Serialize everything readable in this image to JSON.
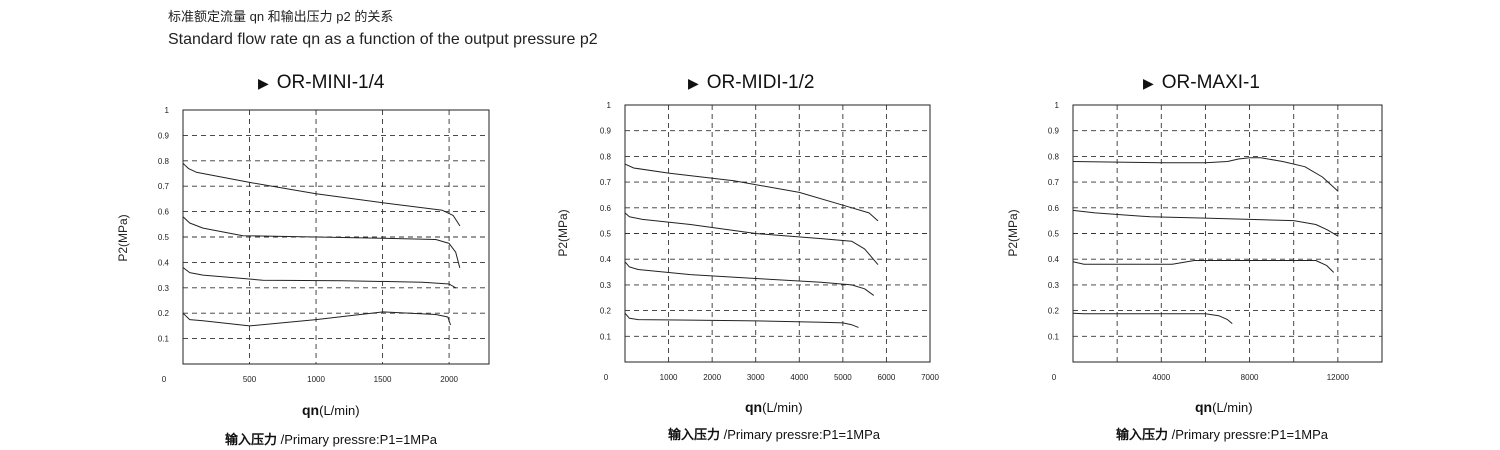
{
  "header": {
    "title_cn": "标准额定流量 qn 和输出压力 p2 的关系",
    "title_en": "Standard flow rate qn as a function of the output pressure p2"
  },
  "chart_data": [
    {
      "type": "line",
      "title": "OR-MINI-1/4",
      "xlabel_main": "qn",
      "xlabel_unit": "(L/min)",
      "ylabel": "P2(MPa)",
      "footnote_cn": "输入压力",
      "footnote_en": " /Primary pressre:P1=1MPa",
      "xlim": [
        0,
        2300
      ],
      "ylim": [
        0,
        1
      ],
      "xticks": [
        0,
        500,
        1000,
        1500,
        2000
      ],
      "xgrid": [
        500,
        1000,
        1500,
        2000
      ],
      "yticks": [
        0.1,
        0.2,
        0.3,
        0.4,
        0.5,
        0.6,
        0.7,
        0.8,
        0.9,
        1
      ],
      "ygrid": [
        0.1,
        0.2,
        0.3,
        0.4,
        0.5,
        0.6,
        0.7,
        0.8,
        0.9
      ],
      "series": [
        {
          "x": [
            0,
            40,
            100,
            500,
            1000,
            1500,
            1950,
            2030,
            2080
          ],
          "y": [
            0.79,
            0.77,
            0.755,
            0.715,
            0.67,
            0.635,
            0.605,
            0.585,
            0.545
          ]
        },
        {
          "x": [
            0,
            50,
            150,
            450,
            1000,
            1500,
            1900,
            2000,
            2050,
            2080
          ],
          "y": [
            0.58,
            0.555,
            0.535,
            0.505,
            0.5,
            0.495,
            0.49,
            0.475,
            0.44,
            0.38
          ]
        },
        {
          "x": [
            0,
            50,
            150,
            600,
            1200,
            1800,
            2000,
            2050
          ],
          "y": [
            0.38,
            0.36,
            0.35,
            0.33,
            0.328,
            0.322,
            0.315,
            0.3
          ]
        },
        {
          "x": [
            0,
            50,
            150,
            500,
            1000,
            1500,
            1900,
            1990,
            2010
          ],
          "y": [
            0.2,
            0.175,
            0.17,
            0.15,
            0.175,
            0.205,
            0.195,
            0.185,
            0.155
          ]
        }
      ]
    },
    {
      "type": "line",
      "title": "OR-MIDI-1/2",
      "xlabel_main": "qn",
      "xlabel_unit": "(L/min)",
      "ylabel": "P2(MPa)",
      "footnote_cn": "输入压力",
      "footnote_en": " /Primary pressre:P1=1MPa",
      "xlim": [
        0,
        7000
      ],
      "ylim": [
        0,
        1
      ],
      "xticks": [
        0,
        1000,
        2000,
        3000,
        4000,
        5000,
        6000,
        7000
      ],
      "xgrid": [
        1000,
        2000,
        3000,
        4000,
        5000,
        6000
      ],
      "yticks": [
        0.1,
        0.2,
        0.3,
        0.4,
        0.5,
        0.6,
        0.7,
        0.8,
        0.9,
        1
      ],
      "ygrid": [
        0.1,
        0.2,
        0.3,
        0.4,
        0.5,
        0.6,
        0.7,
        0.8,
        0.9
      ],
      "series": [
        {
          "x": [
            0,
            200,
            1000,
            2500,
            4000,
            5000,
            5600,
            5800
          ],
          "y": [
            0.77,
            0.755,
            0.735,
            0.705,
            0.66,
            0.61,
            0.58,
            0.55
          ]
        },
        {
          "x": [
            0,
            100,
            400,
            1500,
            3000,
            4500,
            5200,
            5500,
            5800
          ],
          "y": [
            0.58,
            0.565,
            0.555,
            0.535,
            0.5,
            0.48,
            0.47,
            0.44,
            0.38
          ]
        },
        {
          "x": [
            0,
            100,
            300,
            1500,
            3000,
            4500,
            5200,
            5500,
            5700
          ],
          "y": [
            0.39,
            0.37,
            0.36,
            0.34,
            0.325,
            0.31,
            0.3,
            0.285,
            0.26
          ]
        },
        {
          "x": [
            0,
            100,
            300,
            1500,
            3000,
            4500,
            5000,
            5200,
            5350
          ],
          "y": [
            0.19,
            0.17,
            0.165,
            0.163,
            0.16,
            0.155,
            0.152,
            0.145,
            0.135
          ]
        }
      ]
    },
    {
      "type": "line",
      "title": "OR-MAXI-1",
      "xlabel_main": "qn",
      "xlabel_unit": "(L/min)",
      "ylabel": "P2(MPa)",
      "footnote_cn": "输入压力",
      "footnote_en": " /Primary pressre:P1=1MPa",
      "xlim": [
        0,
        14000
      ],
      "ylim": [
        0,
        1
      ],
      "xticks": [
        0,
        4000,
        8000,
        12000
      ],
      "xgrid": [
        2000,
        4000,
        6000,
        8000,
        10000,
        12000
      ],
      "yticks": [
        0.1,
        0.2,
        0.3,
        0.4,
        0.5,
        0.6,
        0.7,
        0.8,
        0.9,
        1
      ],
      "ygrid": [
        0.1,
        0.2,
        0.3,
        0.4,
        0.5,
        0.6,
        0.7,
        0.8,
        0.9
      ],
      "series": [
        {
          "x": [
            0,
            2000,
            4000,
            6000,
            7000,
            7500,
            8000,
            8500,
            9500,
            10500,
            11300,
            12000
          ],
          "y": [
            0.78,
            0.778,
            0.775,
            0.775,
            0.78,
            0.79,
            0.795,
            0.795,
            0.78,
            0.76,
            0.72,
            0.665
          ]
        },
        {
          "x": [
            0,
            1000,
            3500,
            6000,
            8000,
            10000,
            11000,
            11500,
            12000
          ],
          "y": [
            0.59,
            0.58,
            0.565,
            0.56,
            0.555,
            0.55,
            0.535,
            0.515,
            0.49
          ]
        },
        {
          "x": [
            0,
            500,
            2000,
            4500,
            5500,
            7000,
            9000,
            11000,
            11500,
            11800
          ],
          "y": [
            0.39,
            0.38,
            0.38,
            0.38,
            0.395,
            0.395,
            0.395,
            0.395,
            0.375,
            0.35
          ]
        },
        {
          "x": [
            0,
            500,
            3000,
            6000,
            6600,
            7000,
            7200
          ],
          "y": [
            0.19,
            0.188,
            0.188,
            0.188,
            0.18,
            0.165,
            0.15
          ]
        }
      ]
    }
  ]
}
